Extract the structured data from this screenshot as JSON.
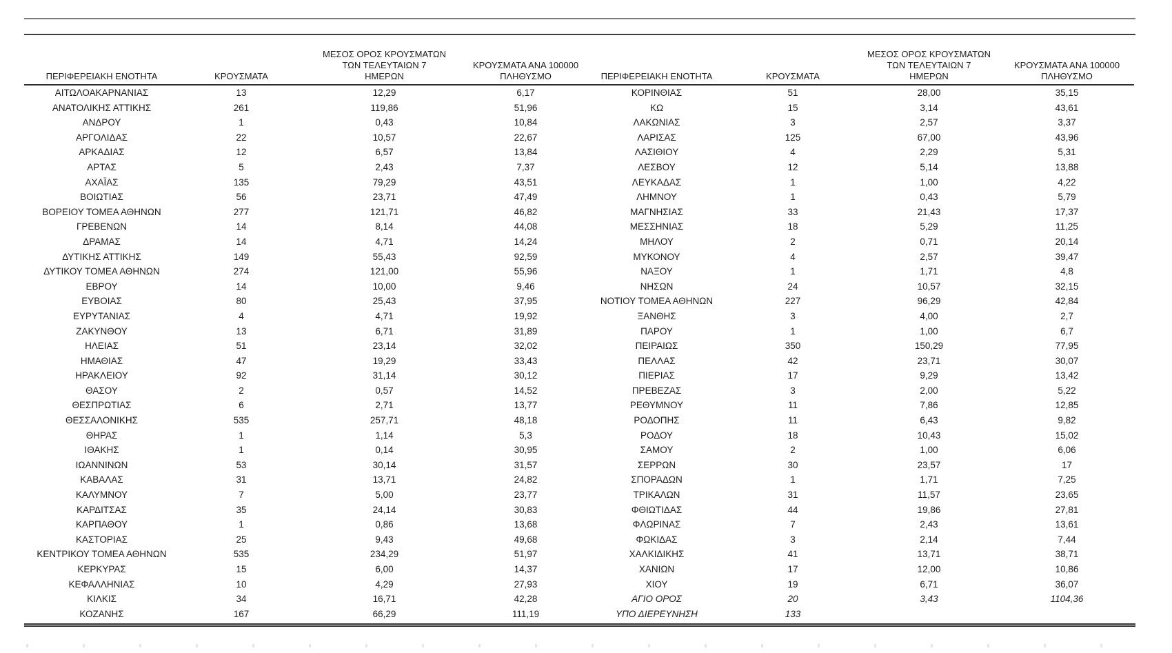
{
  "table": {
    "headers": {
      "region": "ΠΕΡΙΦΕΡΕΙΑΚΗ ΕΝΟΤΗΤΑ",
      "cases": "ΚΡΟΥΣΜΑΤΑ",
      "avg7": [
        "ΜΕΣΟΣ ΟΡΟΣ ΚΡΟΥΣΜΑΤΩΝ",
        "ΤΩΝ ΤΕΛΕΥΤΑΙΩΝ 7",
        "ΗΜΕΡΩΝ"
      ],
      "per100k": [
        "ΚΡΟΥΣΜΑΤΑ ΑΝΑ 100000",
        "ΠΛΗΘΥΣΜΟ"
      ]
    },
    "left_rows": [
      {
        "region": "ΑΙΤΩΛΟΑΚΑΡΝΑΝΙΑΣ",
        "cases": "13",
        "avg7": "12,29",
        "per100k": "6,17"
      },
      {
        "region": "ΑΝΑΤΟΛΙΚΗΣ ΑΤΤΙΚΗΣ",
        "cases": "261",
        "avg7": "119,86",
        "per100k": "51,96"
      },
      {
        "region": "ΑΝΔΡΟΥ",
        "cases": "1",
        "avg7": "0,43",
        "per100k": "10,84"
      },
      {
        "region": "ΑΡΓΟΛΙΔΑΣ",
        "cases": "22",
        "avg7": "10,57",
        "per100k": "22,67"
      },
      {
        "region": "ΑΡΚΑΔΙΑΣ",
        "cases": "12",
        "avg7": "6,57",
        "per100k": "13,84"
      },
      {
        "region": "ΑΡΤΑΣ",
        "cases": "5",
        "avg7": "2,43",
        "per100k": "7,37"
      },
      {
        "region": "ΑΧΑΪΑΣ",
        "cases": "135",
        "avg7": "79,29",
        "per100k": "43,51"
      },
      {
        "region": "ΒΟΙΩΤΙΑΣ",
        "cases": "56",
        "avg7": "23,71",
        "per100k": "47,49"
      },
      {
        "region": "ΒΟΡΕΙΟΥ ΤΟΜΕΑ ΑΘΗΝΩΝ",
        "cases": "277",
        "avg7": "121,71",
        "per100k": "46,82"
      },
      {
        "region": "ΓΡΕΒΕΝΩΝ",
        "cases": "14",
        "avg7": "8,14",
        "per100k": "44,08"
      },
      {
        "region": "ΔΡΑΜΑΣ",
        "cases": "14",
        "avg7": "4,71",
        "per100k": "14,24"
      },
      {
        "region": "ΔΥΤΙΚΗΣ ΑΤΤΙΚΗΣ",
        "cases": "149",
        "avg7": "55,43",
        "per100k": "92,59"
      },
      {
        "region": "ΔΥΤΙΚΟΥ ΤΟΜΕΑ ΑΘΗΝΩΝ",
        "cases": "274",
        "avg7": "121,00",
        "per100k": "55,96"
      },
      {
        "region": "ΕΒΡΟΥ",
        "cases": "14",
        "avg7": "10,00",
        "per100k": "9,46"
      },
      {
        "region": "ΕΥΒΟΙΑΣ",
        "cases": "80",
        "avg7": "25,43",
        "per100k": "37,95"
      },
      {
        "region": "ΕΥΡΥΤΑΝΙΑΣ",
        "cases": "4",
        "avg7": "4,71",
        "per100k": "19,92"
      },
      {
        "region": "ΖΑΚΥΝΘΟΥ",
        "cases": "13",
        "avg7": "6,71",
        "per100k": "31,89"
      },
      {
        "region": "ΗΛΕΙΑΣ",
        "cases": "51",
        "avg7": "23,14",
        "per100k": "32,02"
      },
      {
        "region": "ΗΜΑΘΙΑΣ",
        "cases": "47",
        "avg7": "19,29",
        "per100k": "33,43"
      },
      {
        "region": "ΗΡΑΚΛΕΙΟΥ",
        "cases": "92",
        "avg7": "31,14",
        "per100k": "30,12"
      },
      {
        "region": "ΘΑΣΟΥ",
        "cases": "2",
        "avg7": "0,57",
        "per100k": "14,52"
      },
      {
        "region": "ΘΕΣΠΡΩΤΙΑΣ",
        "cases": "6",
        "avg7": "2,71",
        "per100k": "13,77"
      },
      {
        "region": "ΘΕΣΣΑΛΟΝΙΚΗΣ",
        "cases": "535",
        "avg7": "257,71",
        "per100k": "48,18"
      },
      {
        "region": "ΘΗΡΑΣ",
        "cases": "1",
        "avg7": "1,14",
        "per100k": "5,3"
      },
      {
        "region": "ΙΘΑΚΗΣ",
        "cases": "1",
        "avg7": "0,14",
        "per100k": "30,95"
      },
      {
        "region": "ΙΩΑΝΝΙΝΩΝ",
        "cases": "53",
        "avg7": "30,14",
        "per100k": "31,57"
      },
      {
        "region": "ΚΑΒΑΛΑΣ",
        "cases": "31",
        "avg7": "13,71",
        "per100k": "24,82"
      },
      {
        "region": "ΚΑΛΥΜΝΟΥ",
        "cases": "7",
        "avg7": "5,00",
        "per100k": "23,77"
      },
      {
        "region": "ΚΑΡΔΙΤΣΑΣ",
        "cases": "35",
        "avg7": "24,14",
        "per100k": "30,83"
      },
      {
        "region": "ΚΑΡΠΑΘΟΥ",
        "cases": "1",
        "avg7": "0,86",
        "per100k": "13,68"
      },
      {
        "region": "ΚΑΣΤΟΡΙΑΣ",
        "cases": "25",
        "avg7": "9,43",
        "per100k": "49,68"
      },
      {
        "region": "ΚΕΝΤΡΙΚΟΥ ΤΟΜΕΑ ΑΘΗΝΩΝ",
        "cases": "535",
        "avg7": "234,29",
        "per100k": "51,97"
      },
      {
        "region": "ΚΕΡΚΥΡΑΣ",
        "cases": "15",
        "avg7": "6,00",
        "per100k": "14,37"
      },
      {
        "region": "ΚΕΦΑΛΛΗΝΙΑΣ",
        "cases": "10",
        "avg7": "4,29",
        "per100k": "27,93"
      },
      {
        "region": "ΚΙΛΚΙΣ",
        "cases": "34",
        "avg7": "16,71",
        "per100k": "42,28"
      },
      {
        "region": "ΚΟΖΑΝΗΣ",
        "cases": "167",
        "avg7": "66,29",
        "per100k": "111,19"
      }
    ],
    "right_rows": [
      {
        "region": "ΚΟΡΙΝΘΙΑΣ",
        "cases": "51",
        "avg7": "28,00",
        "per100k": "35,15"
      },
      {
        "region": "ΚΩ",
        "cases": "15",
        "avg7": "3,14",
        "per100k": "43,61"
      },
      {
        "region": "ΛΑΚΩΝΙΑΣ",
        "cases": "3",
        "avg7": "2,57",
        "per100k": "3,37"
      },
      {
        "region": "ΛΑΡΙΣΑΣ",
        "cases": "125",
        "avg7": "67,00",
        "per100k": "43,96"
      },
      {
        "region": "ΛΑΣΙΘΙΟΥ",
        "cases": "4",
        "avg7": "2,29",
        "per100k": "5,31"
      },
      {
        "region": "ΛΕΣΒΟΥ",
        "cases": "12",
        "avg7": "5,14",
        "per100k": "13,88"
      },
      {
        "region": "ΛΕΥΚΑΔΑΣ",
        "cases": "1",
        "avg7": "1,00",
        "per100k": "4,22"
      },
      {
        "region": "ΛΗΜΝΟΥ",
        "cases": "1",
        "avg7": "0,43",
        "per100k": "5,79"
      },
      {
        "region": "ΜΑΓΝΗΣΙΑΣ",
        "cases": "33",
        "avg7": "21,43",
        "per100k": "17,37"
      },
      {
        "region": "ΜΕΣΣΗΝΙΑΣ",
        "cases": "18",
        "avg7": "5,29",
        "per100k": "11,25"
      },
      {
        "region": "ΜΗΛΟΥ",
        "cases": "2",
        "avg7": "0,71",
        "per100k": "20,14"
      },
      {
        "region": "ΜΥΚΟΝΟΥ",
        "cases": "4",
        "avg7": "2,57",
        "per100k": "39,47"
      },
      {
        "region": "ΝΑΞΟΥ",
        "cases": "1",
        "avg7": "1,71",
        "per100k": "4,8"
      },
      {
        "region": "ΝΗΣΩΝ",
        "cases": "24",
        "avg7": "10,57",
        "per100k": "32,15"
      },
      {
        "region": "ΝΟΤΙΟΥ ΤΟΜΕΑ ΑΘΗΝΩΝ",
        "cases": "227",
        "avg7": "96,29",
        "per100k": "42,84"
      },
      {
        "region": "ΞΑΝΘΗΣ",
        "cases": "3",
        "avg7": "4,00",
        "per100k": "2,7"
      },
      {
        "region": "ΠΑΡΟΥ",
        "cases": "1",
        "avg7": "1,00",
        "per100k": "6,7"
      },
      {
        "region": "ΠΕΙΡΑΙΩΣ",
        "cases": "350",
        "avg7": "150,29",
        "per100k": "77,95"
      },
      {
        "region": "ΠΕΛΛΑΣ",
        "cases": "42",
        "avg7": "23,71",
        "per100k": "30,07"
      },
      {
        "region": "ΠΙΕΡΙΑΣ",
        "cases": "17",
        "avg7": "9,29",
        "per100k": "13,42"
      },
      {
        "region": "ΠΡΕΒΕΖΑΣ",
        "cases": "3",
        "avg7": "2,00",
        "per100k": "5,22"
      },
      {
        "region": "ΡΕΘΥΜΝΟΥ",
        "cases": "11",
        "avg7": "7,86",
        "per100k": "12,85"
      },
      {
        "region": "ΡΟΔΟΠΗΣ",
        "cases": "11",
        "avg7": "6,43",
        "per100k": "9,82"
      },
      {
        "region": "ΡΟΔΟΥ",
        "cases": "18",
        "avg7": "10,43",
        "per100k": "15,02"
      },
      {
        "region": "ΣΑΜΟΥ",
        "cases": "2",
        "avg7": "1,00",
        "per100k": "6,06"
      },
      {
        "region": "ΣΕΡΡΩΝ",
        "cases": "30",
        "avg7": "23,57",
        "per100k": "17"
      },
      {
        "region": "ΣΠΟΡΑΔΩΝ",
        "cases": "1",
        "avg7": "1,71",
        "per100k": "7,25"
      },
      {
        "region": "ΤΡΙΚΑΛΩΝ",
        "cases": "31",
        "avg7": "11,57",
        "per100k": "23,65"
      },
      {
        "region": "ΦΘΙΩΤΙΔΑΣ",
        "cases": "44",
        "avg7": "19,86",
        "per100k": "27,81"
      },
      {
        "region": "ΦΛΩΡΙΝΑΣ",
        "cases": "7",
        "avg7": "2,43",
        "per100k": "13,61"
      },
      {
        "region": "ΦΩΚΙΔΑΣ",
        "cases": "3",
        "avg7": "2,14",
        "per100k": "7,44"
      },
      {
        "region": "ΧΑΛΚΙΔΙΚΗΣ",
        "cases": "41",
        "avg7": "13,71",
        "per100k": "38,71"
      },
      {
        "region": "ΧΑΝΙΩΝ",
        "cases": "17",
        "avg7": "12,00",
        "per100k": "10,86"
      },
      {
        "region": "ΧΙΟΥ",
        "cases": "19",
        "avg7": "6,71",
        "per100k": "36,07"
      },
      {
        "region": "ΑΓΙΟ ΟΡΟΣ",
        "cases": "20",
        "avg7": "3,43",
        "per100k": "1104,36",
        "italic": true
      },
      {
        "region": "ΥΠΟ ΔΙΕΡΕΥΝΗΣΗ",
        "cases": "133",
        "avg7": "",
        "per100k": "",
        "italic": true
      }
    ]
  }
}
